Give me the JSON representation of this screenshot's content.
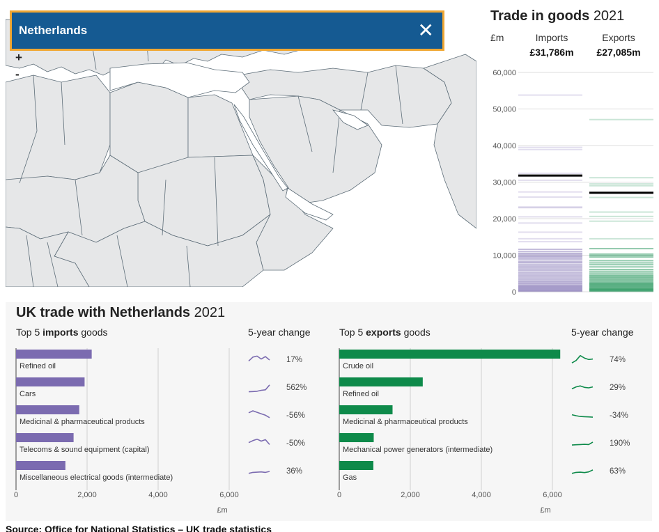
{
  "map": {
    "selected_country": "Netherlands",
    "zoom_in_label": "+",
    "zoom_out_label": "-",
    "land_color": "#e6e7e8",
    "border_color": "#5d6d78",
    "banner_color": "#155a92",
    "banner_border_color": "#f0a733"
  },
  "goods_panel": {
    "title": "Trade in goods",
    "year": "2021",
    "unit": "£m",
    "imports_label": "Imports",
    "exports_label": "Exports",
    "imports_total": "£31,786m",
    "exports_total": "£27,085m"
  },
  "trade_section": {
    "title": "UK trade with Netherlands",
    "year": "2021",
    "imports_heading_pre": "Top 5 ",
    "imports_heading_bold": "imports",
    "imports_heading_post": " goods",
    "exports_heading_pre": "Top 5 ",
    "exports_heading_bold": "exports",
    "exports_heading_post": " goods",
    "change_heading": "5-year change"
  },
  "source": "Source: Office for National Statistics – UK trade statistics",
  "chart_data": [
    {
      "type": "strip",
      "chart": "trade-in-goods",
      "title": "Trade in goods",
      "ylabel": "£m",
      "ylim": [
        0,
        60000
      ],
      "yticks": [
        0,
        10000,
        20000,
        30000,
        40000,
        50000,
        60000
      ],
      "ytick_labels": [
        "0",
        "10,000",
        "20,000",
        "30,000",
        "40,000",
        "50,000",
        "60,000"
      ],
      "series": [
        {
          "name": "Imports",
          "color": "#7b6bb0",
          "highlight": 31786,
          "values": [
            53800,
            39500,
            38900,
            32400,
            30500,
            27300,
            25900,
            23200,
            23000,
            20500,
            18800,
            16300,
            14500,
            13700,
            11600,
            11000,
            10500,
            10200,
            9800,
            9500,
            9100,
            8700,
            8200,
            7900,
            7400,
            7000,
            6600,
            6200,
            5800,
            5300,
            4900,
            4500,
            4100,
            3700,
            3300,
            2900,
            2600,
            2300,
            2000,
            1700,
            1500,
            1300,
            1100,
            900,
            700,
            500,
            300,
            150
          ]
        },
        {
          "name": "Exports",
          "color": "#0e8a4a",
          "highlight": 27085,
          "values": [
            47100,
            31200,
            29500,
            29000,
            25800,
            21800,
            20600,
            19300,
            14500,
            11800,
            10300,
            9900,
            9500,
            8500,
            7900,
            7400,
            6800,
            6100,
            5600,
            5100,
            4600,
            4300,
            4000,
            3700,
            3400,
            3100,
            2800,
            2500,
            2300,
            2100,
            1900,
            1700,
            1500,
            1300,
            1100,
            900,
            750,
            600,
            450,
            300,
            150
          ]
        }
      ]
    },
    {
      "type": "bar",
      "orientation": "horizontal",
      "chart": "top5-imports",
      "title": "Top 5 imports goods",
      "xlabel": "£m",
      "xlim": [
        0,
        6000
      ],
      "xticks": [
        0,
        2000,
        4000,
        6000
      ],
      "xtick_labels": [
        "0",
        "2,000",
        "4,000",
        "6,000"
      ],
      "color": "#7b6bb0",
      "categories": [
        "Refined oil",
        "Cars",
        "Medicinal & pharmaceutical products",
        "Telecoms & sound equipment (capital)",
        "Miscellaneous electrical goods (intermediate)"
      ],
      "values": [
        2130,
        1930,
        1780,
        1620,
        1390
      ],
      "change_labels": [
        "17%",
        "562%",
        "-56%",
        "-50%",
        "36%"
      ],
      "sparklines": [
        [
          0.4,
          0.8,
          0.9,
          0.6,
          0.85,
          0.5
        ],
        [
          0.1,
          0.12,
          0.15,
          0.25,
          0.3,
          0.8
        ],
        [
          0.8,
          1.0,
          0.85,
          0.7,
          0.55,
          0.3
        ],
        [
          0.6,
          0.8,
          0.95,
          0.75,
          0.9,
          0.4
        ],
        [
          0.3,
          0.4,
          0.42,
          0.45,
          0.4,
          0.5
        ]
      ]
    },
    {
      "type": "bar",
      "orientation": "horizontal",
      "chart": "top5-exports",
      "title": "Top 5 exports goods",
      "xlabel": "£m",
      "xlim": [
        0,
        6000
      ],
      "xticks": [
        0,
        2000,
        4000,
        6000
      ],
      "xtick_labels": [
        "0",
        "2,000",
        "4,000",
        "6,000"
      ],
      "color": "#0e8a4a",
      "categories": [
        "Crude oil",
        "Refined oil",
        "Medicinal & pharmaceutical products",
        "Mechanical power generators (intermediate)",
        "Gas"
      ],
      "values": [
        6220,
        2350,
        1500,
        970,
        960
      ],
      "change_labels": [
        "74%",
        "29%",
        "-34%",
        "190%",
        "63%"
      ],
      "sparklines": [
        [
          0.2,
          0.45,
          0.95,
          0.7,
          0.55,
          0.6
        ],
        [
          0.4,
          0.6,
          0.7,
          0.55,
          0.5,
          0.6
        ],
        [
          0.6,
          0.5,
          0.42,
          0.4,
          0.38,
          0.35
        ],
        [
          0.35,
          0.38,
          0.4,
          0.42,
          0.4,
          0.65
        ],
        [
          0.3,
          0.4,
          0.42,
          0.38,
          0.45,
          0.65
        ]
      ]
    }
  ]
}
